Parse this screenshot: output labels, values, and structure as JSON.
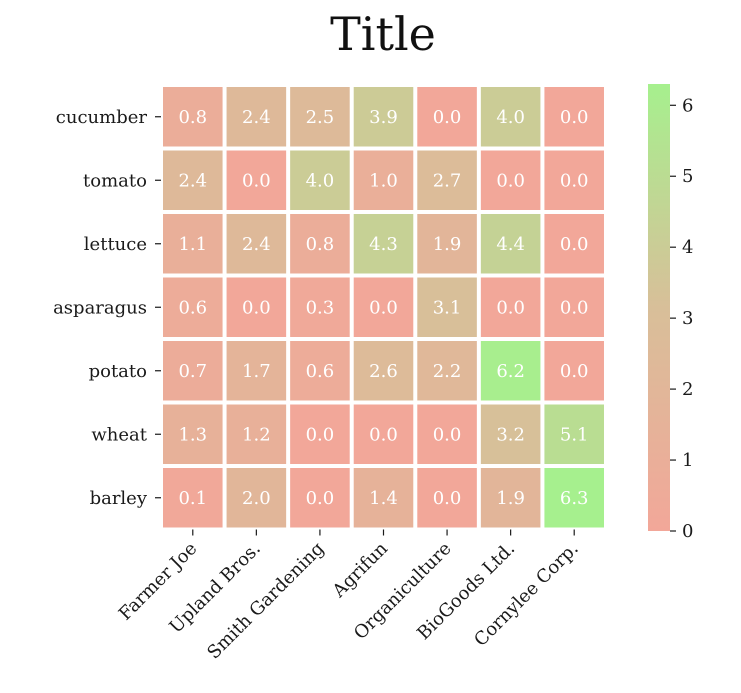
{
  "chart_data": {
    "type": "heatmap",
    "title": "Title",
    "rows": [
      "cucumber",
      "tomato",
      "lettuce",
      "asparagus",
      "potato",
      "wheat",
      "barley"
    ],
    "columns": [
      "Farmer Joe",
      "Upland Bros.",
      "Smith Gardening",
      "Agrifun",
      "Organiculture",
      "BioGoods Ltd.",
      "Cornylee Corp."
    ],
    "values": [
      [
        0.8,
        2.4,
        2.5,
        3.9,
        0.0,
        4.0,
        0.0
      ],
      [
        2.4,
        0.0,
        4.0,
        1.0,
        2.7,
        0.0,
        0.0
      ],
      [
        1.1,
        2.4,
        0.8,
        4.3,
        1.9,
        4.4,
        0.0
      ],
      [
        0.6,
        0.0,
        0.3,
        0.0,
        3.1,
        0.0,
        0.0
      ],
      [
        0.7,
        1.7,
        0.6,
        2.6,
        2.2,
        6.2,
        0.0
      ],
      [
        1.3,
        1.2,
        0.0,
        0.0,
        0.0,
        3.2,
        5.1
      ],
      [
        0.1,
        2.0,
        0.0,
        1.4,
        0.0,
        1.9,
        6.3
      ]
    ],
    "colorbar": {
      "min": 0,
      "max": 6.3,
      "ticks": [
        0,
        1,
        2,
        3,
        4,
        5,
        6
      ],
      "colors": [
        "#f2a799",
        "#d8bf99",
        "#a6f08e"
      ]
    },
    "xlabel": "",
    "ylabel": ""
  }
}
